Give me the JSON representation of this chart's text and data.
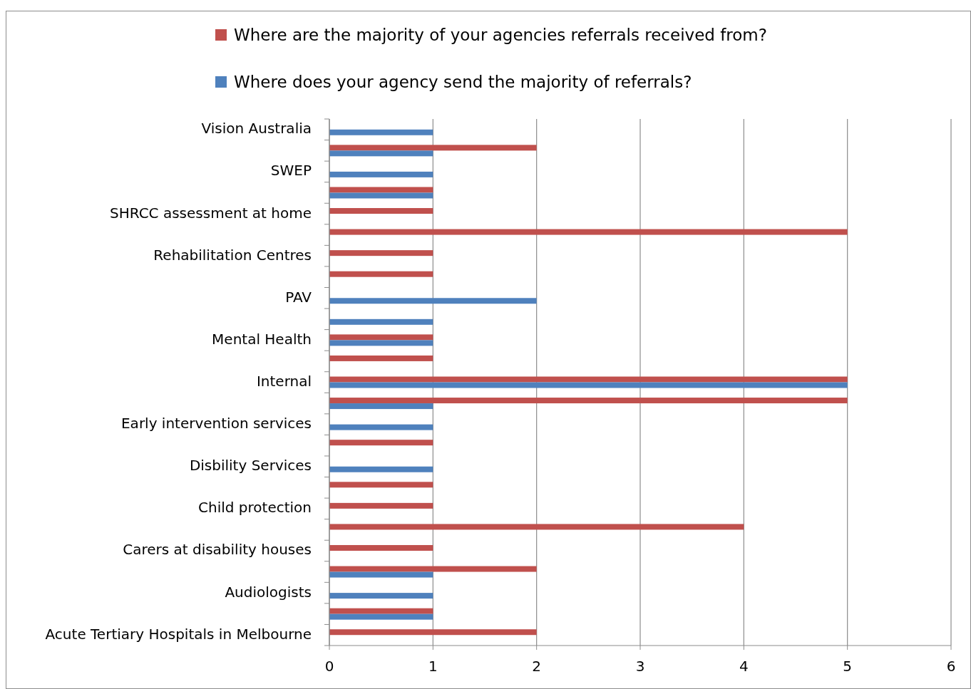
{
  "chart_data": {
    "type": "bar",
    "orientation": "horizontal",
    "legend": "top",
    "grid": "x",
    "categories": [
      "Vision Australia",
      null,
      "SWEP",
      null,
      "SHRCC assessment at home",
      null,
      "Rehabilitation Centres",
      null,
      "PAV",
      null,
      "Mental Health",
      null,
      "Internal",
      null,
      "Early intervention services",
      null,
      "Disbility Services",
      null,
      "Child protection",
      null,
      "Carers at disability houses",
      null,
      "Audiologists",
      null,
      "Acute Tertiary Hospitals in Melbourne"
    ],
    "series": [
      {
        "name": "Where are the majority of your agencies referrals received from?",
        "color": "#c0504d",
        "values": [
          null,
          2,
          null,
          1,
          1,
          5,
          1,
          1,
          null,
          null,
          1,
          1,
          5,
          5,
          null,
          1,
          null,
          1,
          1,
          4,
          1,
          2,
          null,
          1,
          2
        ]
      },
      {
        "name": "Where does your agency send the majority of referrals?",
        "color": "#4f81bd",
        "values": [
          1,
          1,
          1,
          1,
          null,
          null,
          null,
          null,
          2,
          1,
          1,
          null,
          5,
          1,
          1,
          null,
          1,
          null,
          null,
          null,
          null,
          1,
          1,
          1,
          null
        ]
      }
    ],
    "xlim": [
      0,
      6
    ],
    "xticks": [
      0,
      1,
      2,
      3,
      4,
      5,
      6
    ]
  }
}
